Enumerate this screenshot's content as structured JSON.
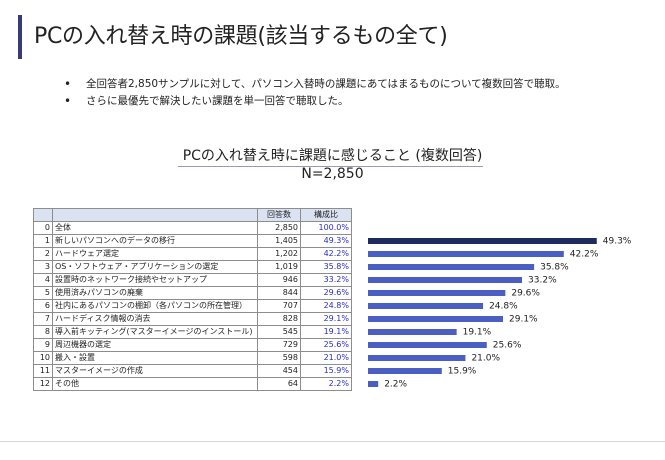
{
  "page": {
    "title": "PCの入れ替え時の課題(該当するもの全て)",
    "bullets": [
      "全回答者2,850サンプルに対して、パソコン入替時の課題にあてはまるものについて複数回答で聴取。",
      "さらに最優先で解決したい課題を単一回答で聴取した。"
    ]
  },
  "chart_data": {
    "type": "bar",
    "title": "PCの入れ替え時に課題に感じること (複数回答)",
    "subtitle": "N=2,850",
    "columns": [
      "回答数",
      "構成比"
    ],
    "rows": [
      {
        "no": "0",
        "label": "全体",
        "count": "2,850",
        "pct": "100.0%"
      },
      {
        "no": "1",
        "label": "新しいパソコンへのデータの移行",
        "count": "1,405",
        "pct": "49.3%"
      },
      {
        "no": "2",
        "label": "ハードウェア選定",
        "count": "1,202",
        "pct": "42.2%"
      },
      {
        "no": "3",
        "label": "OS・ソフトウェア・アプリケーションの選定",
        "count": "1,019",
        "pct": "35.8%"
      },
      {
        "no": "4",
        "label": "設置時のネットワーク接続やセットアップ",
        "count": "946",
        "pct": "33.2%"
      },
      {
        "no": "5",
        "label": "使用済みパソコンの廃棄",
        "count": "844",
        "pct": "29.6%"
      },
      {
        "no": "6",
        "label": "社内にあるパソコンの棚卸（各パソコンの所在管理）",
        "count": "707",
        "pct": "24.8%"
      },
      {
        "no": "7",
        "label": "ハードディスク情報の消去",
        "count": "828",
        "pct": "29.1%"
      },
      {
        "no": "8",
        "label": "導入前キッティング(マスターイメージのインストール)",
        "count": "545",
        "pct": "19.1%"
      },
      {
        "no": "9",
        "label": "周辺機器の選定",
        "count": "729",
        "pct": "25.6%"
      },
      {
        "no": "10",
        "label": "搬入・設置",
        "count": "598",
        "pct": "21.0%"
      },
      {
        "no": "11",
        "label": "マスターイメージの作成",
        "count": "454",
        "pct": "15.9%"
      },
      {
        "no": "12",
        "label": "その他",
        "count": "64",
        "pct": "2.2%"
      }
    ],
    "bar_categories": [
      "1",
      "2",
      "3",
      "4",
      "5",
      "6",
      "7",
      "8",
      "9",
      "10",
      "11",
      "12"
    ],
    "values": [
      49.3,
      42.2,
      35.8,
      33.2,
      29.6,
      24.8,
      29.1,
      19.1,
      25.6,
      21.0,
      15.9,
      2.2
    ],
    "value_labels": [
      "49.3%",
      "42.2%",
      "35.8%",
      "33.2%",
      "29.6%",
      "24.8%",
      "29.1%",
      "19.1%",
      "25.6%",
      "21.0%",
      "15.9%",
      "2.2%"
    ],
    "colors": {
      "highlight": "#1f2a5e",
      "bar": "#4a5fc1"
    },
    "highlight_index": 0,
    "xlim": [
      0,
      100
    ]
  }
}
